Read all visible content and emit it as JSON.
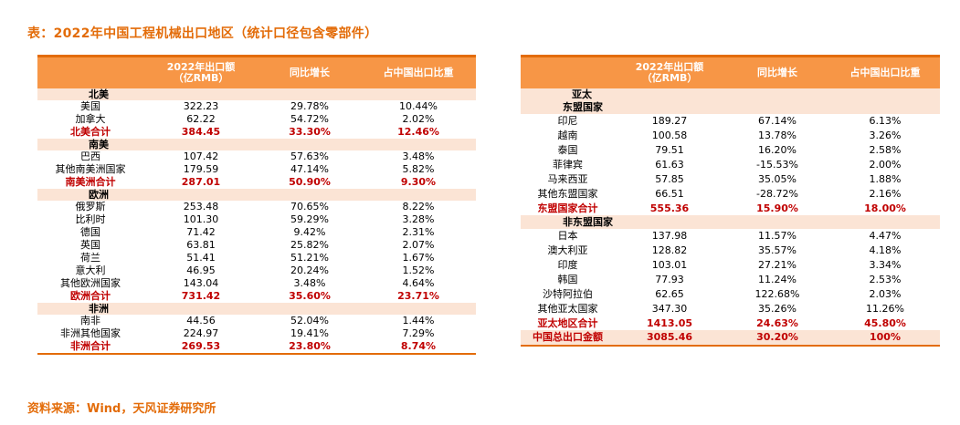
{
  "title": "表：2022年中国工程机械出口地区（统计口径包含零部件）",
  "source": "资料来源：Wind，天风证券研究所",
  "headers": {
    "value_line1": "2022年出口额",
    "value_line2": "（亿RMB）",
    "growth": "同比增长",
    "share": "占中国出口比重"
  },
  "left_table": [
    {
      "type": "region",
      "name": "北美"
    },
    {
      "type": "row",
      "name": "美国",
      "value": "322.23",
      "growth": "29.78%",
      "share": "10.44%"
    },
    {
      "type": "row",
      "name": "加拿大",
      "value": "62.22",
      "growth": "54.72%",
      "share": "2.02%"
    },
    {
      "type": "total",
      "name": "北美合计",
      "value": "384.45",
      "growth": "33.30%",
      "share": "12.46%"
    },
    {
      "type": "region",
      "name": "南美"
    },
    {
      "type": "row",
      "name": "巴西",
      "value": "107.42",
      "growth": "57.63%",
      "share": "3.48%"
    },
    {
      "type": "row",
      "name": "其他南美洲国家",
      "value": "179.59",
      "growth": "47.14%",
      "share": "5.82%"
    },
    {
      "type": "total",
      "name": "南美洲合计",
      "value": "287.01",
      "growth": "50.90%",
      "share": "9.30%"
    },
    {
      "type": "region",
      "name": "欧洲"
    },
    {
      "type": "row",
      "name": "俄罗斯",
      "value": "253.48",
      "growth": "70.65%",
      "share": "8.22%"
    },
    {
      "type": "row",
      "name": "比利时",
      "value": "101.30",
      "growth": "59.29%",
      "share": "3.28%"
    },
    {
      "type": "row",
      "name": "德国",
      "value": "71.42",
      "growth": "9.42%",
      "share": "2.31%"
    },
    {
      "type": "row",
      "name": "英国",
      "value": "63.81",
      "growth": "25.82%",
      "share": "2.07%"
    },
    {
      "type": "row",
      "name": "荷兰",
      "value": "51.41",
      "growth": "51.21%",
      "share": "1.67%"
    },
    {
      "type": "row",
      "name": "意大利",
      "value": "46.95",
      "growth": "20.24%",
      "share": "1.52%"
    },
    {
      "type": "row",
      "name": "其他欧洲国家",
      "value": "143.04",
      "growth": "3.48%",
      "share": "4.64%"
    },
    {
      "type": "total",
      "name": "欧洲合计",
      "value": "731.42",
      "growth": "35.60%",
      "share": "23.71%"
    },
    {
      "type": "region",
      "name": "非洲"
    },
    {
      "type": "row",
      "name": "南非",
      "value": "44.56",
      "growth": "52.04%",
      "share": "1.44%"
    },
    {
      "type": "row",
      "name": "非洲其他国家",
      "value": "224.97",
      "growth": "19.41%",
      "share": "7.29%"
    },
    {
      "type": "total",
      "name": "非洲合计",
      "value": "269.53",
      "growth": "23.80%",
      "share": "8.74%"
    }
  ],
  "right_table": [
    {
      "type": "region",
      "name": "亚太"
    },
    {
      "type": "subregion",
      "name": "东盟国家"
    },
    {
      "type": "row",
      "name": "印尼",
      "value": "189.27",
      "growth": "67.14%",
      "share": "6.13%"
    },
    {
      "type": "row",
      "name": "越南",
      "value": "100.58",
      "growth": "13.78%",
      "share": "3.26%"
    },
    {
      "type": "row",
      "name": "泰国",
      "value": "79.51",
      "growth": "16.20%",
      "share": "2.58%"
    },
    {
      "type": "row",
      "name": "菲律宾",
      "value": "61.63",
      "growth": "-15.53%",
      "share": "2.00%"
    },
    {
      "type": "row",
      "name": "马来西亚",
      "value": "57.85",
      "growth": "35.05%",
      "share": "1.88%"
    },
    {
      "type": "row",
      "name": "其他东盟国家",
      "value": "66.51",
      "growth": "-28.72%",
      "share": "2.16%"
    },
    {
      "type": "total",
      "name": "东盟国家合计",
      "value": "555.36",
      "growth": "15.90%",
      "share": "18.00%"
    },
    {
      "type": "subregion",
      "name": "非东盟国家"
    },
    {
      "type": "row",
      "name": "日本",
      "value": "137.98",
      "growth": "11.57%",
      "share": "4.47%"
    },
    {
      "type": "row",
      "name": "澳大利亚",
      "value": "128.82",
      "growth": "35.57%",
      "share": "4.18%"
    },
    {
      "type": "row",
      "name": "印度",
      "value": "103.01",
      "growth": "27.21%",
      "share": "3.34%"
    },
    {
      "type": "row",
      "name": "韩国",
      "value": "77.93",
      "growth": "11.24%",
      "share": "2.53%"
    },
    {
      "type": "row",
      "name": "沙特阿拉伯",
      "value": "62.65",
      "growth": "122.68%",
      "share": "2.03%"
    },
    {
      "type": "row",
      "name": "其他亚太国家",
      "value": "347.30",
      "growth": "35.26%",
      "share": "11.26%"
    },
    {
      "type": "total",
      "name": "亚太地区合计",
      "value": "1413.05",
      "growth": "24.63%",
      "share": "45.80%"
    },
    {
      "type": "grand",
      "name": "中国总出口金额",
      "value": "3085.46",
      "growth": "30.20%",
      "share": "100%"
    }
  ]
}
